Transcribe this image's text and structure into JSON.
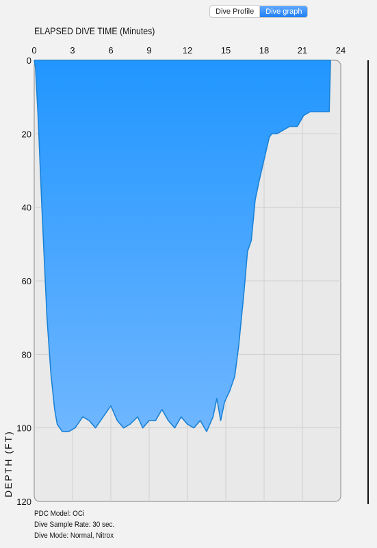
{
  "tabs": [
    {
      "label": "Dive Profile",
      "active": false
    },
    {
      "label": "Dive graph",
      "active": true
    }
  ],
  "chart_data": {
    "type": "area",
    "title": "ELAPSED DIVE TIME (Minutes)",
    "xlabel": "ELAPSED DIVE TIME (Minutes)",
    "ylabel": "DEPTH (FT)",
    "xlim": [
      0,
      24
    ],
    "ylim": [
      0,
      120
    ],
    "y_inverted": true,
    "x_axis_position": "top",
    "x_ticks": [
      "0",
      "3",
      "6",
      "9",
      "12",
      "15",
      "18",
      "21",
      "24"
    ],
    "y_ticks": [
      "0",
      "20",
      "40",
      "60",
      "80",
      "100",
      "120"
    ],
    "grid": true,
    "fill_color": "#3c9cff",
    "line_color": "#1b82d6",
    "x": [
      0,
      0.1,
      0.3,
      0.6,
      1.0,
      1.3,
      1.6,
      1.8,
      2.2,
      2.7,
      3.2,
      3.8,
      4.3,
      4.8,
      5.4,
      6.0,
      6.5,
      7.0,
      7.5,
      8.1,
      8.5,
      9.0,
      9.5,
      10.0,
      10.5,
      11.0,
      11.5,
      12.0,
      12.5,
      13.0,
      13.5,
      14.0,
      14.3,
      14.6,
      14.9,
      15.3,
      15.7,
      16.0,
      16.4,
      16.7,
      17.0,
      17.3,
      17.6,
      18.0,
      18.4,
      18.6,
      19.0,
      19.5,
      20.0,
      20.6,
      21.1,
      21.6,
      22.1,
      22.6,
      23.1,
      23.2
    ],
    "values": [
      0,
      2,
      15,
      40,
      70,
      85,
      95,
      99,
      101,
      101,
      100,
      97,
      98,
      100,
      97,
      94,
      98,
      100,
      99,
      97,
      100,
      98,
      98,
      95,
      98,
      100,
      97,
      99,
      100,
      98,
      101,
      97,
      92,
      98,
      93,
      90,
      86,
      78,
      64,
      52,
      49,
      38,
      33,
      27,
      21,
      20,
      20,
      19,
      18,
      18,
      15,
      14,
      14,
      14,
      14,
      0
    ]
  },
  "info": {
    "pdc_model": "PDC Model: OCi",
    "sample_rate": "Dive Sample Rate: 30 sec.",
    "dive_mode": "Dive Mode: Normal, Nitrox"
  }
}
